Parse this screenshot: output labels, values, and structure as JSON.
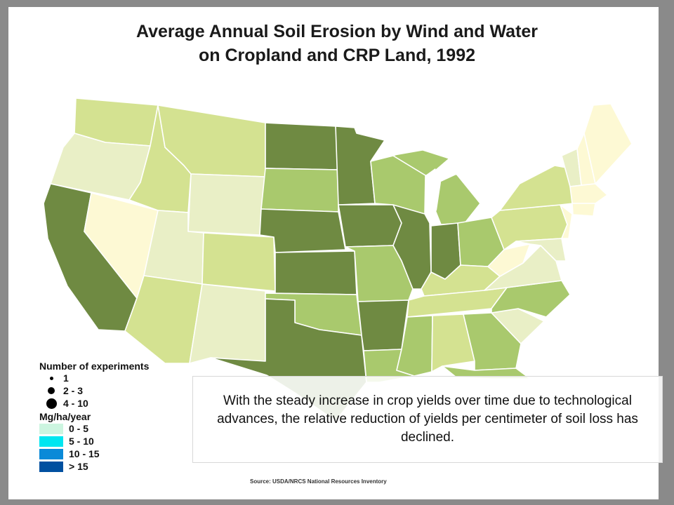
{
  "map": {
    "title_line1": "Average Annual Soil Erosion by Wind and Water",
    "title_line2": "on Cropland and CRP Land, 1992",
    "colors": {
      "lightest": "#fdf9d4",
      "very_light": "#e9efc6",
      "light": "#d4e291",
      "medium": "#a9c96d",
      "medium_dark": "#8fb45a",
      "dark": "#6f8a42",
      "water": "#ffffff",
      "border": "#ffffff"
    }
  },
  "legend": {
    "experiments_title": "Number of experiments",
    "experiments": [
      {
        "label": "1",
        "size": "small"
      },
      {
        "label": "2 - 3",
        "size": "medium"
      },
      {
        "label": "4 - 10",
        "size": "large"
      }
    ],
    "rate_title": "Mg/ha/year",
    "rates": [
      {
        "label": "0 - 5",
        "color": "#ccf5e0"
      },
      {
        "label": "5 - 10",
        "color": "#00e6f0"
      },
      {
        "label": "10 - 15",
        "color": "#0a8ad8"
      },
      {
        "label": "> 15",
        "color": "#0050a0"
      }
    ]
  },
  "caption": "With the steady increase in crop yields over time due to technological advances, the relative reduction of yields per centimeter of soil loss has declined.",
  "source": "Source: USDA/NRCS National Resources Inventory"
}
